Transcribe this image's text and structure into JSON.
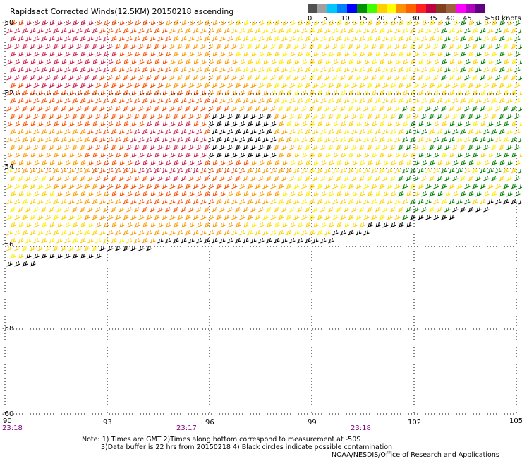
{
  "title": "Rapidsact Corrected Winds(12.5KM) 20150218 ascending",
  "legend": {
    "colors": [
      "#505050",
      "#a0a0a0",
      "#00c8ff",
      "#0080ff",
      "#0000ff",
      "#009000",
      "#40ff00",
      "#ffd000",
      "#ffff00",
      "#ff9000",
      "#ff6000",
      "#ff2020",
      "#c00040",
      "#804020",
      "#a06040",
      "#ff00ff",
      "#b000c0",
      "#600080"
    ],
    "labels": [
      "0",
      "5",
      "10",
      "15",
      "20",
      "25",
      "30",
      "35",
      "40",
      "45",
      ">50 knots"
    ]
  },
  "lat_labels": [
    "-50",
    "-52",
    "-54",
    "-56",
    "-58",
    "-60"
  ],
  "lon_labels": [
    "90",
    "93",
    "96",
    "99",
    "102",
    "105"
  ],
  "times": [
    "23:18",
    "23:17",
    "23:18"
  ],
  "time_color": "#800080",
  "notes": [
    "Note: 1) Times are GMT 2)Times along bottom correspond to measurement at -50S",
    "3)Data buffer is 22 hrs from 20150218 4) Black circles indicate possible contamination"
  ],
  "credit": "NOAA/NESDIS/Office of Research and Applications"
}
